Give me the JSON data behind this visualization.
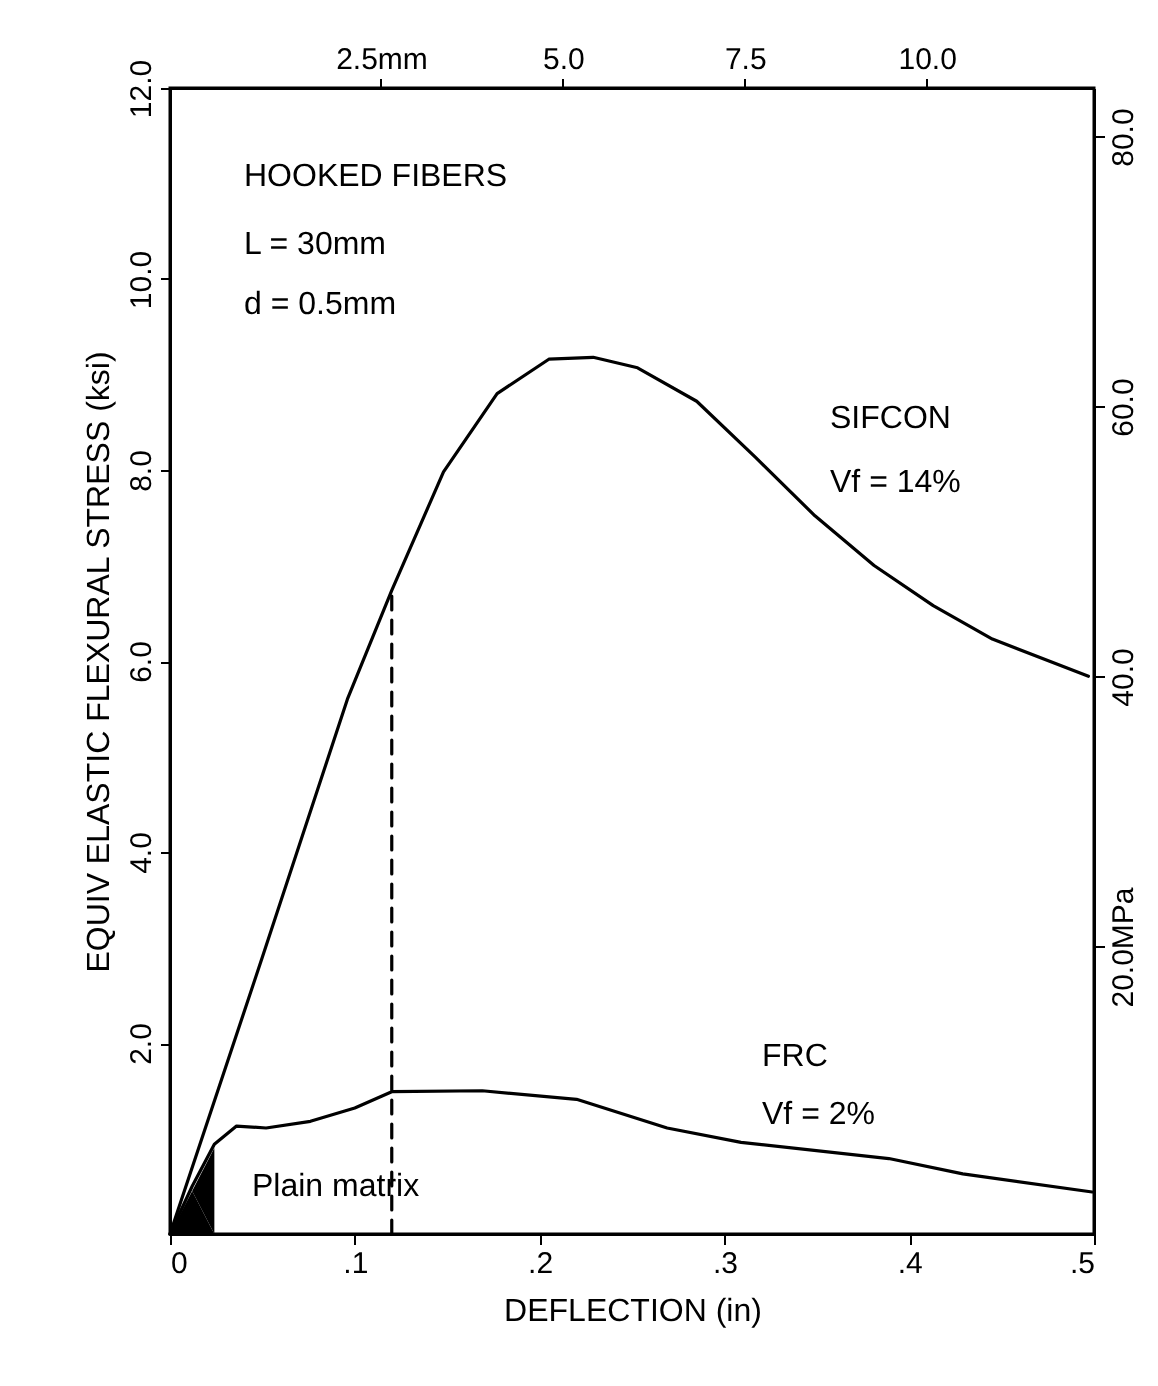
{
  "chart_data": {
    "type": "line",
    "xlabel": "DEFLECTION (in)",
    "ylabel": "EQUIV ELASTIC FLEXURAL STRESS (ksi)",
    "xlim": [
      0,
      0.5
    ],
    "xticks": [
      0,
      {
        "value": 0.1,
        "label": ".1"
      },
      {
        "value": 0.2,
        "label": ".2"
      },
      {
        "value": 0.3,
        "label": ".3"
      },
      {
        "value": 0.4,
        "label": ".4"
      },
      {
        "value": 0.5,
        "label": ".5"
      }
    ],
    "ylim": [
      0,
      12
    ],
    "yticks": [
      {
        "value": 2,
        "label": "2.0"
      },
      {
        "value": 4,
        "label": "4.0"
      },
      {
        "value": 6,
        "label": "6.0"
      },
      {
        "value": 8,
        "label": "8.0"
      },
      {
        "value": 10,
        "label": "10.0"
      },
      {
        "value": 12,
        "label": "12.0"
      }
    ],
    "x2lim": [
      -0.4,
      12.3
    ],
    "x2ticks": [
      {
        "value": 2.5,
        "label": "2.5mm"
      },
      {
        "value": 5,
        "label": "5.0"
      },
      {
        "value": 7.5,
        "label": "7.5"
      },
      {
        "value": 10,
        "label": "10.0"
      }
    ],
    "y2lim": [
      -1.3,
      83.6
    ],
    "y2ticks": [
      {
        "value": 20,
        "label": "20.0MPa"
      },
      {
        "value": 40,
        "label": "40.0"
      },
      {
        "value": 60,
        "label": "60.0"
      },
      {
        "value": 80,
        "label": "80.0"
      }
    ],
    "grid": false,
    "marker": "none",
    "series": [
      {
        "type": "area",
        "color": "#000000",
        "x": [
          0,
          0.012,
          0.024,
          0.024
        ],
        "values": [
          0,
          0.45,
          0.9,
          0
        ]
      },
      {
        "color": "#000000",
        "line_style": "solid",
        "x": [
          0,
          0.05,
          0.096,
          0.12,
          0.148,
          0.177,
          0.205,
          0.229,
          0.253,
          0.285,
          0.317,
          0.349,
          0.381,
          0.413,
          0.445,
          0.497
        ],
        "values": [
          0,
          2.9,
          5.6,
          6.74,
          7.98,
          8.8,
          9.16,
          9.18,
          9.07,
          8.72,
          8.13,
          7.52,
          7.0,
          6.58,
          6.23,
          5.84
        ]
      },
      {
        "color": "#000000",
        "line_style": "solid",
        "x": [
          0,
          0.012,
          0.024,
          0.036,
          0.052,
          0.076,
          0.1,
          0.12,
          0.169,
          0.22,
          0.269,
          0.309,
          0.389,
          0.429,
          0.499
        ],
        "values": [
          0,
          0.5,
          0.94,
          1.13,
          1.11,
          1.18,
          1.32,
          1.49,
          1.5,
          1.41,
          1.11,
          0.96,
          0.79,
          0.63,
          0.44
        ]
      },
      {
        "color": "#000000",
        "line_style": "dashed",
        "x": [
          0.12,
          0.12
        ],
        "values": [
          0,
          6.74
        ]
      }
    ],
    "annotations": [
      "HOOKED FIBERS",
      "L = 30mm",
      "d = 0.5mm",
      "SIFCON",
      "Vf = 14%",
      "FRC",
      "Vf = 2%",
      "Plain matrix"
    ]
  }
}
